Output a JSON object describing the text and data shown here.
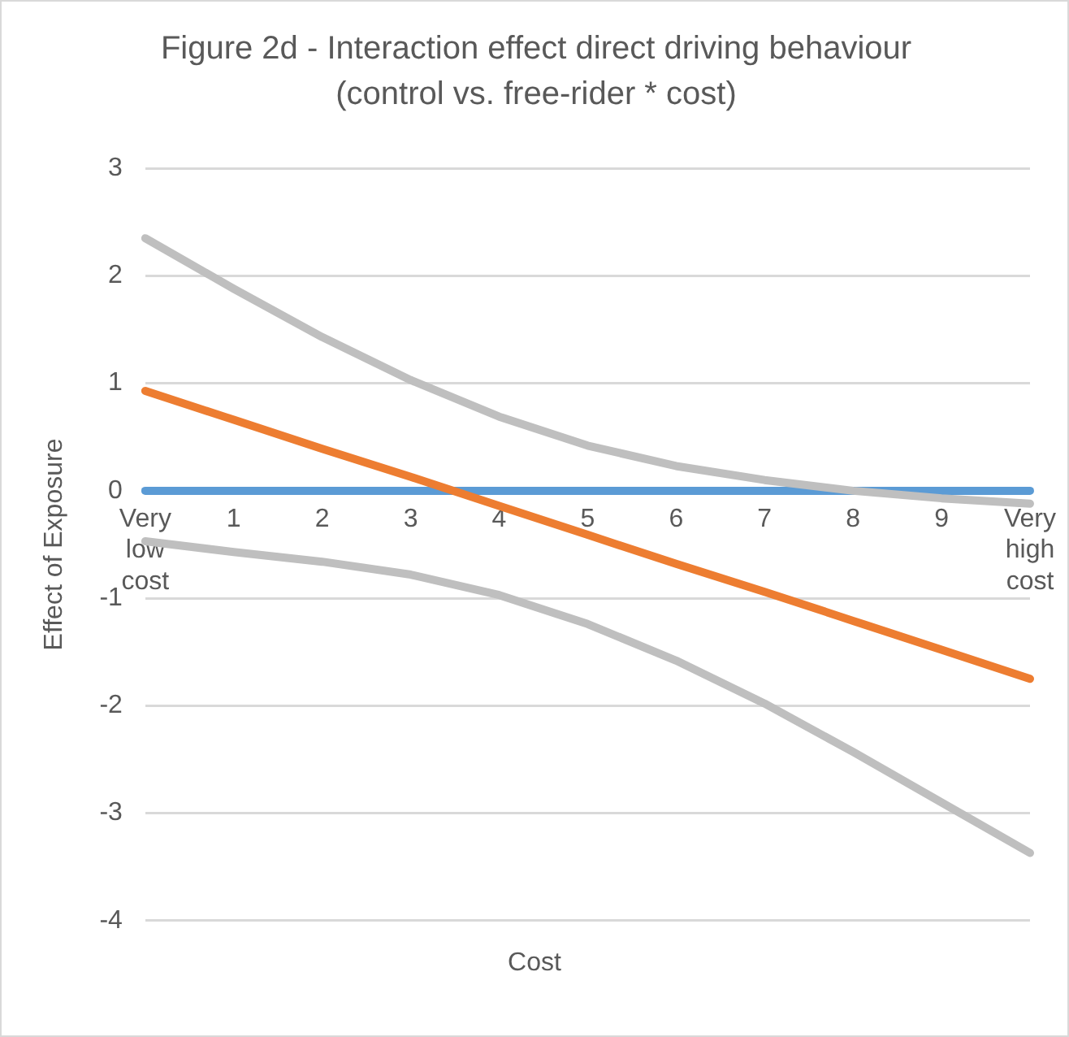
{
  "chart_data": {
    "type": "line",
    "title": "Figure 2d - Interaction effect direct driving behaviour (control vs. free-rider * cost)",
    "xlabel": "Cost",
    "ylabel": "Effect of Exposure",
    "categories": [
      "Very low cost",
      "1",
      "2",
      "3",
      "4",
      "5",
      "6",
      "7",
      "8",
      "9",
      "Very high cost"
    ],
    "series": [
      {
        "color": "#5b9bd5",
        "values": [
          0,
          0,
          0,
          0,
          0,
          0,
          0,
          0,
          0,
          0,
          0
        ]
      },
      {
        "color": "#ed7d31",
        "values": [
          0.93,
          0.66,
          0.39,
          0.13,
          -0.14,
          -0.41,
          -0.68,
          -0.94,
          -1.21,
          -1.48,
          -1.75
        ]
      },
      {
        "color": "#bfbfbf",
        "values": [
          2.35,
          1.88,
          1.43,
          1.03,
          0.69,
          0.42,
          0.23,
          0.1,
          0.0,
          -0.07,
          -0.12
        ]
      },
      {
        "color": "#bfbfbf",
        "values": [
          -0.47,
          -0.57,
          -0.66,
          -0.78,
          -0.97,
          -1.24,
          -1.58,
          -1.98,
          -2.43,
          -2.9,
          -3.37
        ]
      }
    ],
    "ylim": [
      -4,
      3
    ],
    "yticks": [
      -4,
      -3,
      -2,
      -1,
      0,
      1,
      2,
      3
    ],
    "grid": "y",
    "legend": false,
    "marker": "none",
    "line_style": "solid"
  }
}
